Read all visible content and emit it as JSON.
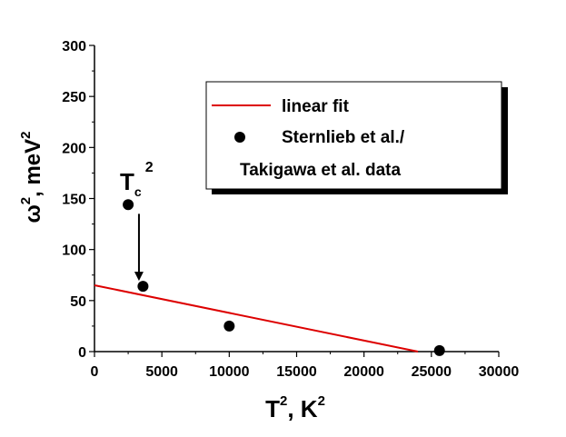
{
  "chart_data": {
    "type": "scatter",
    "xlabel": {
      "base": "T",
      "sup1": "2",
      "rest": ", K",
      "sup2": "2"
    },
    "ylabel": {
      "base": "ω",
      "sup1": "2",
      "rest": ", meV",
      "sup2": "2"
    },
    "xlim": [
      0,
      30000
    ],
    "ylim": [
      0,
      300
    ],
    "xticks": [
      0,
      5000,
      10000,
      15000,
      20000,
      25000,
      30000
    ],
    "yticks": [
      0,
      50,
      100,
      150,
      200,
      250,
      300
    ],
    "grid": false,
    "legend_position": "top-right",
    "series": [
      {
        "name": "Sternlieb et al./ Takigawa et al. data",
        "legend_lines": [
          "Sternlieb et al./",
          "Takigawa et al. data"
        ],
        "kind": "scatter",
        "color": "#000000",
        "points": [
          [
            2500,
            144
          ],
          [
            3600,
            64
          ],
          [
            10000,
            25
          ],
          [
            25600,
            1
          ]
        ]
      },
      {
        "name": "linear fit",
        "kind": "line",
        "color": "#dd0000",
        "points": [
          [
            0,
            65
          ],
          [
            24000,
            0
          ]
        ]
      }
    ],
    "annotation": {
      "label": {
        "base": "T",
        "sub": "c",
        "sup": "2"
      },
      "arrow_from": [
        3300,
        135
      ],
      "arrow_to": [
        3300,
        64
      ]
    }
  }
}
